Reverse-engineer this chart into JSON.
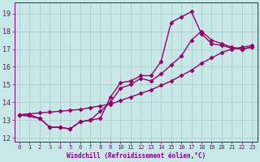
{
  "xlabel": "Windchill (Refroidissement éolien,°C)",
  "bg_color": "#c8e8e8",
  "grid_color": "#a8cece",
  "line_color": "#990066",
  "xlim": [
    -0.5,
    23.5
  ],
  "ylim": [
    11.8,
    19.6
  ],
  "xticks": [
    0,
    1,
    2,
    3,
    4,
    5,
    6,
    7,
    8,
    9,
    10,
    11,
    12,
    13,
    14,
    15,
    16,
    17,
    18,
    19,
    20,
    21,
    22,
    23
  ],
  "yticks": [
    12,
    13,
    14,
    15,
    16,
    17,
    18,
    19
  ],
  "line1_x": [
    0,
    1,
    2,
    3,
    4,
    5,
    6,
    7,
    8,
    9,
    10,
    11,
    12,
    13,
    14,
    15,
    16,
    17,
    18,
    19,
    20,
    21,
    22,
    23
  ],
  "line1_y": [
    13.3,
    13.3,
    13.1,
    12.6,
    12.6,
    12.5,
    12.9,
    13.0,
    13.1,
    14.3,
    15.1,
    15.2,
    15.5,
    15.5,
    16.3,
    18.5,
    18.8,
    19.1,
    17.85,
    17.3,
    17.2,
    17.05,
    17.0,
    17.1
  ],
  "line2_x": [
    0,
    2,
    3,
    4,
    5,
    6,
    7,
    8,
    9,
    10,
    11,
    12,
    13,
    14,
    15,
    16,
    17,
    18,
    19,
    20,
    21,
    22,
    23
  ],
  "line2_y": [
    13.3,
    13.1,
    12.6,
    12.6,
    12.5,
    12.9,
    13.0,
    13.5,
    14.0,
    14.8,
    15.0,
    15.35,
    15.2,
    15.6,
    16.1,
    16.6,
    17.5,
    18.0,
    17.5,
    17.3,
    17.1,
    17.0,
    17.1
  ],
  "line3_x": [
    0,
    1,
    2,
    3,
    4,
    5,
    6,
    7,
    8,
    9,
    10,
    11,
    12,
    13,
    14,
    15,
    16,
    17,
    18,
    19,
    20,
    21,
    22,
    23
  ],
  "line3_y": [
    13.3,
    13.35,
    13.4,
    13.45,
    13.5,
    13.55,
    13.6,
    13.7,
    13.8,
    13.9,
    14.1,
    14.3,
    14.5,
    14.7,
    14.95,
    15.2,
    15.5,
    15.8,
    16.2,
    16.5,
    16.8,
    17.0,
    17.1,
    17.2
  ],
  "marker": "D",
  "markersize": 2.5,
  "linewidth": 1.0
}
